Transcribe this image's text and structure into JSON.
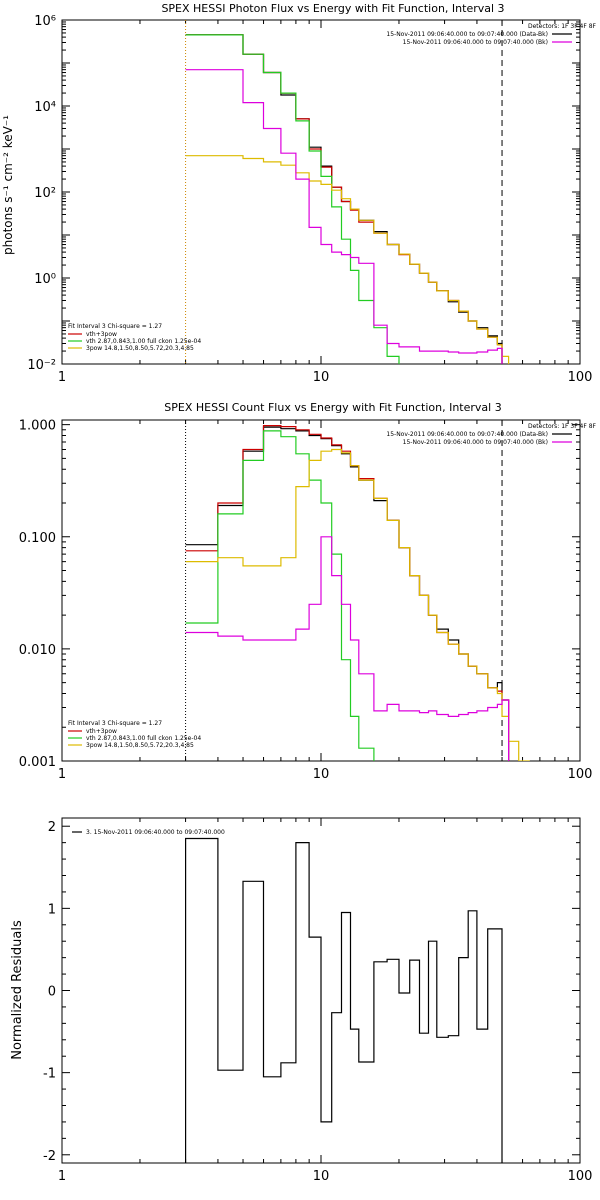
{
  "colors": {
    "background": "#ffffff",
    "axis": "#000000",
    "total": "#000000",
    "vth_plus_3pow": "#cc0000",
    "vth": "#22cc22",
    "threepow": "#ddbb00",
    "background_series": "#dd00dd",
    "fit_range": "#cc8800"
  },
  "chart_data": [
    {
      "type": "line",
      "step": true,
      "title": "SPEX HESSI Photon Flux vs Energy with Fit Function, Interval 3",
      "xlabel": "",
      "ylabel": "photons s⁻¹ cm⁻² keV⁻¹",
      "xscale": "log",
      "yscale": "log",
      "xlim": [
        1,
        100
      ],
      "ylim": [
        0.01,
        1000000
      ],
      "xticks": [
        {
          "v": 1,
          "label": "1"
        },
        {
          "v": 10,
          "label": "10"
        },
        {
          "v": 100,
          "label": "100"
        }
      ],
      "yticks": [
        {
          "v": 0.01,
          "label": "10⁻²"
        },
        {
          "v": 1,
          "label": "10⁰"
        },
        {
          "v": 100,
          "label": "10²"
        },
        {
          "v": 10000,
          "label": "10⁴"
        },
        {
          "v": 1000000,
          "label": "10⁶"
        }
      ],
      "vlines": [
        {
          "x": 3.0,
          "style": "dotted",
          "color": "fit_range"
        },
        {
          "x": 50.0,
          "style": "dashed",
          "color": "axis"
        }
      ],
      "legend_top_right": {
        "detectors": "Detectors: 1F 3F 4F 8F",
        "entries": [
          {
            "text": "15-Nov-2011 09:06:40.000 to 09:07:40.000 (Data-Bk)",
            "color": "total"
          },
          {
            "text": "15-Nov-2011 09:06:40.000 to 09:07:40.000 (Bk)",
            "color": "background_series"
          }
        ]
      },
      "legend_bottom_left": {
        "header": "Fit Interval 3   Chi-square = 1.27",
        "entries": [
          {
            "text": "vth+3pow",
            "color": "vth_plus_3pow"
          },
          {
            "text": "vth 2.87,0.843,1.00  full ckon 1.25e-04",
            "color": "vth"
          },
          {
            "text": "3pow 14.8,1.50,8.50,5.72,20.3,4.85",
            "color": "threepow"
          }
        ]
      },
      "edges": [
        3,
        4,
        5,
        6,
        7,
        8,
        9,
        10,
        11,
        12,
        13,
        14,
        16,
        18,
        20,
        22,
        24,
        26,
        28,
        31,
        34,
        37,
        40,
        44,
        48,
        50,
        53
      ],
      "series": [
        {
          "name": "Data-Bk",
          "color": "total",
          "range": [
            0,
            25
          ],
          "values": [
            450000,
            450000,
            160000,
            60000,
            18000,
            5000,
            1100,
            400,
            130,
            60,
            40,
            22,
            12,
            6,
            3.6,
            2.1,
            1.3,
            0.8,
            0.5,
            0.28,
            0.16,
            0.1,
            0.07,
            0.045,
            0.03
          ]
        },
        {
          "name": "vth+3pow",
          "color": "vth_plus_3pow",
          "range": [
            0,
            25
          ],
          "values": [
            450000,
            450000,
            160000,
            60000,
            20000,
            5000,
            1000,
            380,
            130,
            60,
            38,
            20,
            11,
            6,
            3.5,
            2.1,
            1.3,
            0.8,
            0.5,
            0.3,
            0.17,
            0.1,
            0.065,
            0.042,
            0.028
          ]
        },
        {
          "name": "vth",
          "color": "vth",
          "range": [
            0,
            14
          ],
          "values": [
            450000,
            450000,
            160000,
            60000,
            20000,
            4500,
            900,
            230,
            45,
            8,
            1.5,
            0.3,
            0.07,
            0.015
          ]
        },
        {
          "name": "3pow",
          "color": "threepow",
          "range": [
            0,
            26
          ],
          "values": [
            700,
            700,
            600,
            500,
            420,
            280,
            180,
            150,
            110,
            70,
            40,
            22,
            11,
            6,
            3.6,
            2.1,
            1.3,
            0.8,
            0.5,
            0.3,
            0.17,
            0.1,
            0.065,
            0.042,
            0.028,
            0.015
          ]
        },
        {
          "name": "Bk",
          "color": "background_series",
          "range": [
            0,
            25
          ],
          "values": [
            70000,
            70000,
            12000,
            3000,
            800,
            200,
            15,
            6,
            4,
            3.5,
            3,
            2.2,
            0.08,
            0.03,
            0.025,
            0.025,
            0.02,
            0.02,
            0.02,
            0.019,
            0.018,
            0.018,
            0.019,
            0.021,
            0.023
          ]
        }
      ]
    },
    {
      "type": "line",
      "step": true,
      "title": "SPEX HESSI Count Flux vs Energy with Fit Function, Interval 3",
      "xlabel": "",
      "ylabel": "",
      "xscale": "log",
      "yscale": "log",
      "xlim": [
        1,
        100
      ],
      "ylim": [
        0.001,
        1.1
      ],
      "xticks": [
        {
          "v": 1,
          "label": "1"
        },
        {
          "v": 10,
          "label": "10"
        },
        {
          "v": 100,
          "label": "100"
        }
      ],
      "yticks": [
        {
          "v": 0.001,
          "label": "0.001"
        },
        {
          "v": 0.01,
          "label": "0.010"
        },
        {
          "v": 0.1,
          "label": "0.100"
        },
        {
          "v": 1,
          "label": "1.000"
        }
      ],
      "vlines": [
        {
          "x": 3.0,
          "style": "dotted",
          "color": "axis"
        },
        {
          "x": 50.0,
          "style": "dashed",
          "color": "axis"
        }
      ],
      "legend_top_right": {
        "detectors": "Detectors: 1F 3F 4F 8F",
        "entries": [
          {
            "text": "15-Nov-2011 09:06:40.000 to 09:07:40.000 (Data-Bk)",
            "color": "total"
          },
          {
            "text": "15-Nov-2011 09:06:40.000 to 09:07:40.000 (Bk)",
            "color": "background_series"
          }
        ]
      },
      "legend_bottom_left": {
        "header": "Fit Interval 3   Chi-square = 1.27",
        "entries": [
          {
            "text": "vth+3pow",
            "color": "vth_plus_3pow"
          },
          {
            "text": "vth 2.87,0.843,1.00  full ckon 1.25e-04",
            "color": "vth"
          },
          {
            "text": "3pow 14.8,1.50,8.50,5.72,20.3,4.85",
            "color": "threepow"
          }
        ]
      },
      "edges": [
        3,
        4,
        5,
        6,
        7,
        8,
        9,
        10,
        11,
        12,
        13,
        14,
        16,
        18,
        20,
        22,
        24,
        26,
        28,
        31,
        34,
        37,
        40,
        44,
        48,
        50,
        53,
        58,
        64
      ],
      "series": [
        {
          "name": "Data-Bk",
          "color": "total",
          "range": [
            0,
            26
          ],
          "values": [
            0.085,
            0.19,
            0.58,
            0.95,
            0.92,
            0.88,
            0.8,
            0.75,
            0.65,
            0.55,
            0.42,
            0.32,
            0.21,
            0.14,
            0.08,
            0.045,
            0.03,
            0.02,
            0.015,
            0.012,
            0.009,
            0.007,
            0.006,
            0.0045,
            0.005,
            0.0035
          ]
        },
        {
          "name": "vth+3pow",
          "color": "vth_plus_3pow",
          "range": [
            0,
            26
          ],
          "values": [
            0.075,
            0.2,
            0.6,
            0.98,
            0.96,
            0.9,
            0.82,
            0.76,
            0.66,
            0.58,
            0.43,
            0.33,
            0.22,
            0.14,
            0.08,
            0.045,
            0.03,
            0.02,
            0.014,
            0.011,
            0.009,
            0.007,
            0.006,
            0.0045,
            0.0042,
            0.0035
          ]
        },
        {
          "name": "vth",
          "color": "vth",
          "range": [
            0,
            12
          ],
          "values": [
            0.017,
            0.16,
            0.48,
            0.88,
            0.78,
            0.55,
            0.32,
            0.2,
            0.07,
            0.008,
            0.0025,
            0.0013
          ]
        },
        {
          "name": "3pow",
          "color": "threepow",
          "range": [
            0,
            28
          ],
          "values": [
            0.06,
            0.065,
            0.055,
            0.055,
            0.065,
            0.28,
            0.48,
            0.58,
            0.6,
            0.56,
            0.43,
            0.32,
            0.22,
            0.14,
            0.08,
            0.045,
            0.03,
            0.02,
            0.014,
            0.011,
            0.009,
            0.007,
            0.006,
            0.0045,
            0.004,
            0.0025,
            0.0015,
            0.001
          ]
        },
        {
          "name": "Bk",
          "color": "background_series",
          "range": [
            0,
            26
          ],
          "values": [
            0.014,
            0.013,
            0.012,
            0.012,
            0.012,
            0.015,
            0.025,
            0.1,
            0.045,
            0.025,
            0.012,
            0.006,
            0.0028,
            0.0032,
            0.0028,
            0.0028,
            0.0027,
            0.0028,
            0.0026,
            0.0025,
            0.0026,
            0.0027,
            0.0028,
            0.003,
            0.0032,
            0.0035
          ]
        }
      ]
    },
    {
      "type": "line",
      "step": true,
      "title": "",
      "xlabel": "",
      "ylabel": "Normalized Residuals",
      "xscale": "log",
      "yscale": "linear",
      "xlim": [
        1,
        100
      ],
      "ylim": [
        -2.1,
        2.1
      ],
      "xticks": [
        {
          "v": 1,
          "label": "1"
        },
        {
          "v": 10,
          "label": "10"
        },
        {
          "v": 100,
          "label": "100"
        }
      ],
      "yticks": [
        {
          "v": -2,
          "label": "-2"
        },
        {
          "v": -1,
          "label": "-1"
        },
        {
          "v": 0,
          "label": "0"
        },
        {
          "v": 1,
          "label": "1"
        },
        {
          "v": 2,
          "label": "2"
        }
      ],
      "vlines": [],
      "legend_top_left": {
        "entries": [
          {
            "text": "3. 15-Nov-2011 09:06:40.000 to 09:07:40.000",
            "color": "total"
          }
        ]
      },
      "edges": [
        3,
        4,
        5,
        6,
        7,
        8,
        9,
        10,
        11,
        12,
        13,
        14,
        16,
        18,
        20,
        22,
        24,
        26,
        28,
        31,
        34,
        37,
        40,
        44,
        48,
        50
      ],
      "series": [
        {
          "name": "residuals",
          "color": "total",
          "range": [
            0,
            25
          ],
          "drop_to_floor": true,
          "values": [
            1.85,
            -0.97,
            1.33,
            -1.05,
            -0.88,
            1.8,
            0.65,
            -1.6,
            -0.27,
            0.95,
            -0.47,
            -0.87,
            0.35,
            0.38,
            -0.03,
            0.37,
            -0.52,
            0.6,
            -0.57,
            -0.55,
            0.4,
            0.97,
            -0.47,
            0.75,
            0.75
          ]
        }
      ]
    }
  ]
}
